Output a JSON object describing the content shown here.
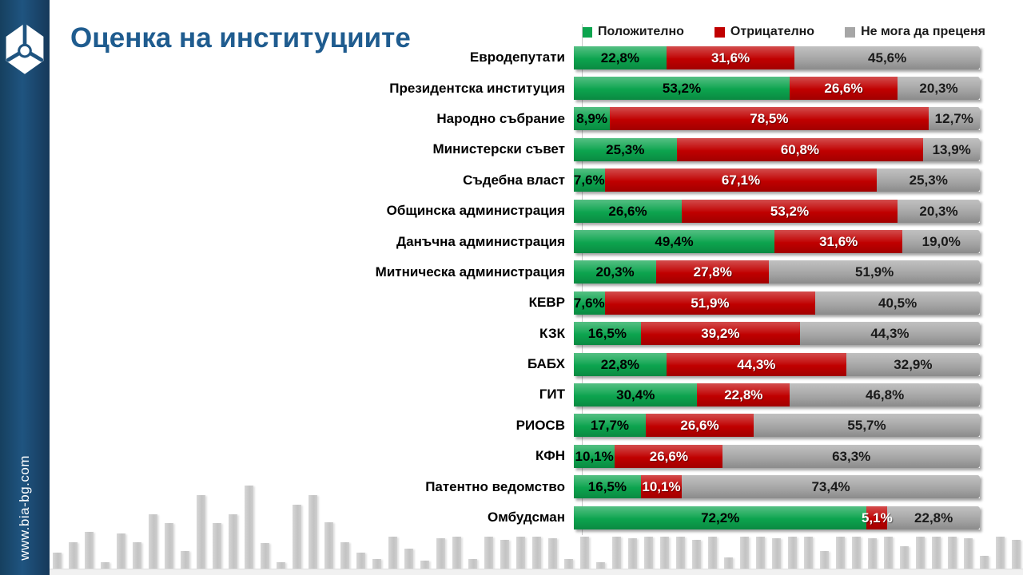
{
  "page": {
    "website": "www.bia-bg.com"
  },
  "title": "Оценка на институциите",
  "legend": [
    {
      "label": "Положително",
      "color": "#0ca44e"
    },
    {
      "label": "Отрицателно",
      "color": "#c00000"
    },
    {
      "label": "Не мога да преценя",
      "color": "#a6a6a6"
    }
  ],
  "chart_data": {
    "type": "bar",
    "orientation": "horizontal",
    "stacked": true,
    "title": "Оценка на институциите",
    "xlim": [
      0,
      100
    ],
    "value_suffix": "%",
    "decimal_separator": ",",
    "legend_position": "top",
    "categories": [
      "Евродепутати",
      "Президентска институция",
      "Народно събрание",
      "Министерски съвет",
      "Съдебна власт",
      "Общинска администрация",
      "Данъчна администрация",
      "Митническа администрация",
      "КЕВР",
      "КЗК",
      "БАБХ",
      "ГИТ",
      "РИОСВ",
      "КФН",
      "Патентно ведомство",
      "Омбудсман"
    ],
    "series": [
      {
        "name": "Положително",
        "color": "#0ca44e",
        "text_color": "#000000",
        "values": [
          22.8,
          53.2,
          8.9,
          25.3,
          7.6,
          26.6,
          49.4,
          20.3,
          7.6,
          16.5,
          22.8,
          30.4,
          17.7,
          10.1,
          16.5,
          72.2
        ]
      },
      {
        "name": "Отрицателно",
        "color": "#c00000",
        "text_color": "#ffffff",
        "values": [
          31.6,
          26.6,
          78.5,
          60.8,
          67.1,
          53.2,
          31.6,
          27.8,
          51.9,
          39.2,
          44.3,
          22.8,
          26.6,
          26.6,
          10.1,
          5.1
        ]
      },
      {
        "name": "Не мога да преценя",
        "color": "#a6a6a6",
        "text_color": "#1a1a1a",
        "values": [
          45.6,
          20.3,
          12.7,
          13.9,
          25.3,
          20.3,
          19.0,
          51.9,
          40.5,
          44.3,
          32.9,
          46.8,
          55.7,
          63.3,
          73.4,
          22.8
        ]
      }
    ]
  },
  "decor_bars": [
    20,
    33,
    46,
    8,
    44,
    33,
    68,
    57,
    22,
    92,
    57,
    68,
    104,
    32,
    8,
    80,
    92,
    58,
    33,
    20,
    12,
    40,
    25,
    10,
    38,
    40,
    12,
    40,
    36,
    40,
    40,
    38,
    12,
    40,
    8,
    40,
    38,
    40,
    40,
    40,
    36,
    40,
    14,
    40,
    40,
    38,
    40,
    40,
    22,
    40,
    40,
    38,
    40,
    28,
    40,
    40,
    40,
    38,
    16,
    40,
    36
  ]
}
